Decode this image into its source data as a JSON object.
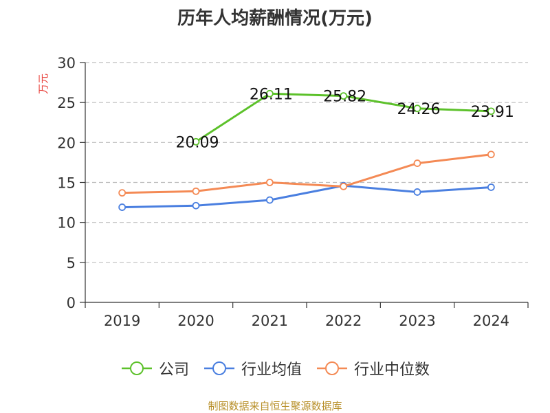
{
  "page": {
    "title": "历年人均薪酬情况(万元)",
    "source": "制图数据来自恒生聚源数据库"
  },
  "chart_data": {
    "type": "line",
    "title": "历年人均薪酬情况(万元)",
    "ylabel": "万元",
    "xlabel": "",
    "categories": [
      "2019",
      "2020",
      "2021",
      "2022",
      "2023",
      "2024"
    ],
    "ylim": [
      0,
      30
    ],
    "yticks": [
      0,
      5,
      10,
      15,
      20,
      25,
      30
    ],
    "grid": true,
    "legend_position": "bottom",
    "series": [
      {
        "name": "公司",
        "color": "#5cc12a",
        "values": [
          null,
          20.09,
          26.11,
          25.82,
          24.26,
          23.91
        ],
        "labels": [
          "",
          "20.09",
          "26.11",
          "25.82",
          "24.26",
          "23.91"
        ]
      },
      {
        "name": "行业均值",
        "color": "#4a7fe0",
        "values": [
          11.9,
          12.1,
          12.8,
          14.6,
          13.8,
          14.4
        ]
      },
      {
        "name": "行业中位数",
        "color": "#f48a55",
        "values": [
          13.7,
          13.9,
          15.0,
          14.5,
          17.4,
          18.5
        ]
      }
    ]
  }
}
